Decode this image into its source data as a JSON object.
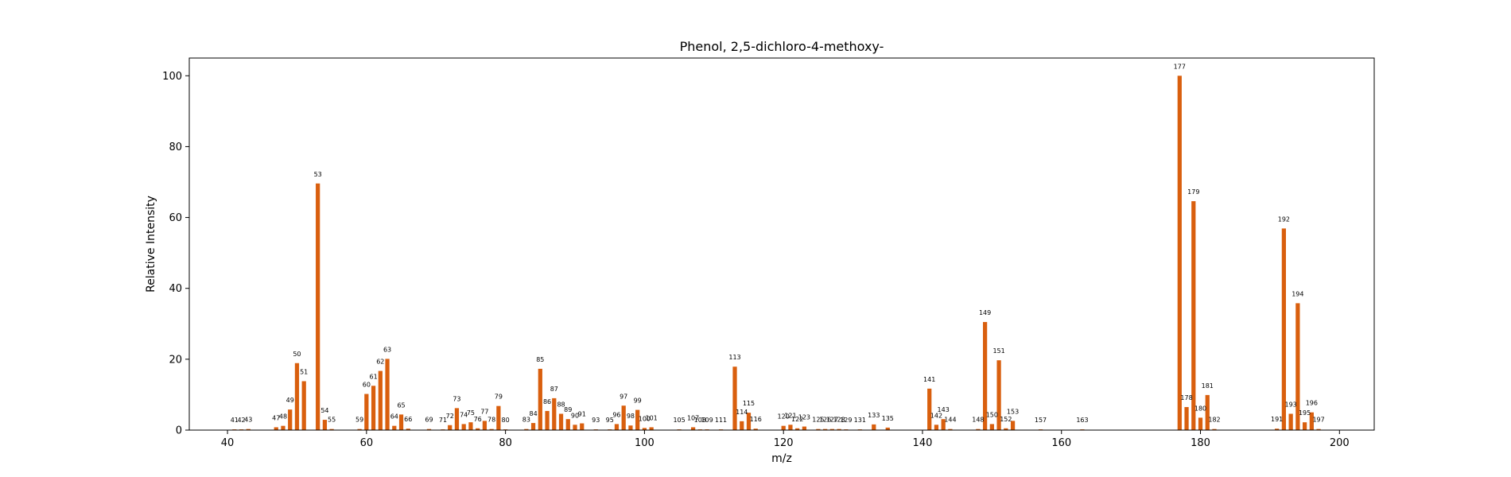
{
  "chart_data": {
    "type": "bar",
    "title": "Phenol, 2,5-dichloro-4-methoxy-",
    "xlabel": "m/z",
    "ylabel": "Relative Intensity",
    "xlim": [
      34.5,
      205
    ],
    "ylim": [
      0,
      105
    ],
    "xticks": [
      40,
      60,
      80,
      100,
      120,
      140,
      160,
      180,
      200
    ],
    "yticks": [
      0,
      20,
      40,
      60,
      80,
      100
    ],
    "grid": false,
    "bar_color": "#d95f0e",
    "x": [
      41,
      42,
      43,
      47,
      48,
      49,
      50,
      51,
      53,
      54,
      55,
      59,
      60,
      61,
      62,
      63,
      64,
      65,
      66,
      69,
      71,
      72,
      73,
      74,
      75,
      76,
      77,
      78,
      79,
      80,
      83,
      84,
      85,
      86,
      87,
      88,
      89,
      90,
      91,
      93,
      95,
      96,
      97,
      98,
      99,
      100,
      101,
      105,
      107,
      108,
      109,
      111,
      113,
      114,
      115,
      116,
      120,
      121,
      122,
      123,
      125,
      126,
      127,
      128,
      129,
      131,
      133,
      135,
      141,
      142,
      143,
      144,
      148,
      149,
      150,
      151,
      152,
      153,
      157,
      163,
      177,
      178,
      179,
      180,
      181,
      182,
      191,
      192,
      193,
      194,
      195,
      196,
      197
    ],
    "values": [
      0.2,
      0.2,
      0.3,
      0.8,
      1.2,
      5.8,
      18.9,
      13.8,
      69.6,
      2.9,
      0.3,
      0.3,
      10.2,
      12.5,
      16.7,
      20.1,
      1.2,
      4.4,
      0.4,
      0.3,
      0.2,
      1.4,
      6.2,
      1.7,
      2.2,
      0.5,
      2.6,
      0.3,
      6.8,
      0.2,
      0.3,
      2.0,
      17.3,
      5.4,
      9.0,
      4.6,
      3.1,
      1.5,
      1.9,
      0.2,
      0.2,
      1.7,
      6.9,
      1.3,
      5.7,
      0.6,
      0.8,
      0.2,
      0.8,
      0.2,
      0.2,
      0.2,
      17.9,
      2.5,
      4.9,
      0.4,
      1.2,
      1.5,
      0.5,
      1.0,
      0.3,
      0.3,
      0.3,
      0.3,
      0.2,
      0.2,
      1.6,
      0.7,
      11.7,
      1.5,
      3.1,
      0.3,
      0.3,
      30.5,
      1.7,
      19.7,
      0.5,
      2.6,
      0.2,
      0.2,
      100.0,
      6.5,
      64.6,
      3.5,
      9.9,
      0.3,
      0.4,
      56.9,
      4.6,
      35.8,
      2.2,
      5.0,
      0.3
    ]
  }
}
